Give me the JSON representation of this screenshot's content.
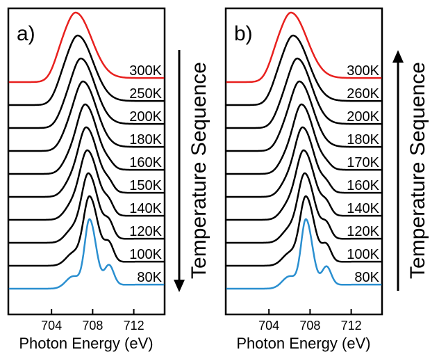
{
  "chart_data": [
    {
      "type": "line",
      "panel_label": "a)",
      "xlabel": "Photon Energy (eV)",
      "xlim": [
        699.8,
        715.0
      ],
      "xticks": [
        704,
        708,
        712
      ],
      "xtick_labels": [
        "704",
        "708",
        "712"
      ],
      "side_label": "Temperature Sequence",
      "arrow_direction": "down",
      "series": [
        {
          "name": "300K",
          "color": "#e8201e",
          "peak": 706.4,
          "shoulder": 0.0,
          "shoulder_pos": 709.5,
          "width": 1.3
        },
        {
          "name": "250K",
          "color": "#000000",
          "peak": 706.6,
          "shoulder": 0.0,
          "shoulder_pos": 709.5,
          "width": 1.25
        },
        {
          "name": "200K",
          "color": "#000000",
          "peak": 706.9,
          "shoulder": 0.0,
          "shoulder_pos": 709.5,
          "width": 1.15
        },
        {
          "name": "180K",
          "color": "#000000",
          "peak": 707.1,
          "shoulder": 0.0,
          "shoulder_pos": 709.6,
          "width": 1.1
        },
        {
          "name": "160K",
          "color": "#000000",
          "peak": 707.3,
          "shoulder": 0.05,
          "shoulder_pos": 709.6,
          "width": 1.0
        },
        {
          "name": "150K",
          "color": "#000000",
          "peak": 707.4,
          "shoulder": 0.1,
          "shoulder_pos": 709.6,
          "width": 0.95
        },
        {
          "name": "140K",
          "color": "#000000",
          "peak": 707.5,
          "shoulder": 0.15,
          "shoulder_pos": 709.6,
          "width": 0.9
        },
        {
          "name": "120K",
          "color": "#000000",
          "peak": 707.6,
          "shoulder": 0.22,
          "shoulder_pos": 709.6,
          "width": 0.8
        },
        {
          "name": "100K",
          "color": "#000000",
          "peak": 707.7,
          "shoulder": 0.26,
          "shoulder_pos": 709.6,
          "width": 0.7
        },
        {
          "name": "80K",
          "color": "#2a8fd0",
          "peak": 707.7,
          "shoulder": 0.3,
          "shoulder_pos": 709.6,
          "width": 0.55
        }
      ]
    },
    {
      "type": "line",
      "panel_label": "b)",
      "xlabel": "Photon Energy (eV)",
      "xlim": [
        699.8,
        715.0
      ],
      "xticks": [
        704,
        708,
        712
      ],
      "xtick_labels": [
        "704",
        "708",
        "712"
      ],
      "side_label": "Temperature Sequence",
      "arrow_direction": "up",
      "series": [
        {
          "name": "300K",
          "color": "#e8201e",
          "peak": 706.2,
          "shoulder": 0.0,
          "shoulder_pos": 709.5,
          "width": 1.3
        },
        {
          "name": "260K",
          "color": "#000000",
          "peak": 706.4,
          "shoulder": 0.0,
          "shoulder_pos": 709.5,
          "width": 1.25
        },
        {
          "name": "200K",
          "color": "#000000",
          "peak": 706.8,
          "shoulder": 0.0,
          "shoulder_pos": 709.5,
          "width": 1.15
        },
        {
          "name": "180K",
          "color": "#000000",
          "peak": 707.0,
          "shoulder": 0.0,
          "shoulder_pos": 709.6,
          "width": 1.1
        },
        {
          "name": "170K",
          "color": "#000000",
          "peak": 707.2,
          "shoulder": 0.05,
          "shoulder_pos": 709.6,
          "width": 1.0
        },
        {
          "name": "160K",
          "color": "#000000",
          "peak": 707.3,
          "shoulder": 0.1,
          "shoulder_pos": 709.6,
          "width": 0.95
        },
        {
          "name": "140K",
          "color": "#000000",
          "peak": 707.4,
          "shoulder": 0.15,
          "shoulder_pos": 709.6,
          "width": 0.9
        },
        {
          "name": "120K",
          "color": "#000000",
          "peak": 707.5,
          "shoulder": 0.2,
          "shoulder_pos": 709.6,
          "width": 0.8
        },
        {
          "name": "100K",
          "color": "#000000",
          "peak": 707.6,
          "shoulder": 0.24,
          "shoulder_pos": 709.6,
          "width": 0.7
        },
        {
          "name": "80K",
          "color": "#2a8fd0",
          "peak": 707.6,
          "shoulder": 0.28,
          "shoulder_pos": 709.6,
          "width": 0.55
        }
      ]
    }
  ]
}
